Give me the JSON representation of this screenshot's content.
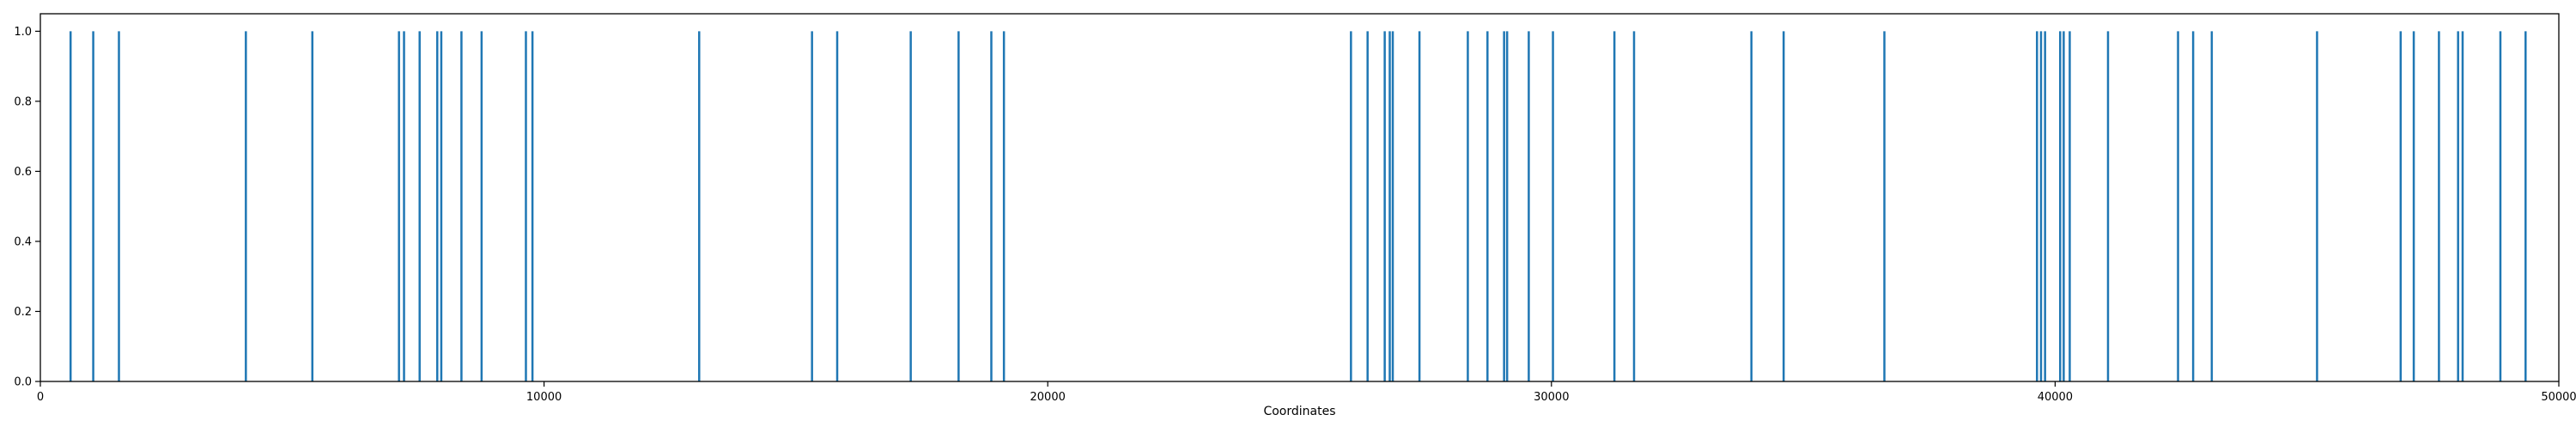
{
  "chart_data": {
    "type": "bar",
    "title": "",
    "xlabel": "Coordinates",
    "ylabel": "",
    "xlim": [
      0,
      50000
    ],
    "ylim": [
      0,
      1.05
    ],
    "grid": false,
    "color": "#1f77b4",
    "x_ticks": [
      0,
      10000,
      20000,
      30000,
      40000,
      50000
    ],
    "x_tick_labels": [
      "0",
      "10000",
      "20000",
      "30000",
      "40000",
      "50000"
    ],
    "y_ticks": [
      0.0,
      0.2,
      0.4,
      0.6,
      0.8,
      1.0
    ],
    "y_tick_labels": [
      "0.0",
      "0.2",
      "0.4",
      "0.6",
      "0.8",
      "1.0"
    ],
    "x": [
      600,
      1050,
      1560,
      4080,
      5400,
      7120,
      7220,
      7530,
      7880,
      7960,
      8360,
      8760,
      9640,
      9770,
      13080,
      15320,
      15820,
      17280,
      18230,
      18880,
      19130,
      26020,
      26350,
      26690,
      26790,
      26850,
      27380,
      28340,
      28730,
      29060,
      29120,
      29550,
      30030,
      31250,
      31640,
      33970,
      34610,
      36610,
      39640,
      39720,
      39800,
      40100,
      40170,
      40290,
      41050,
      42440,
      42740,
      43110,
      45200,
      46860,
      47120,
      47620,
      48000,
      48090,
      48840,
      49340
    ],
    "values": [
      1,
      1,
      1,
      1,
      1,
      1,
      1,
      1,
      1,
      1,
      1,
      1,
      1,
      1,
      1,
      1,
      1,
      1,
      1,
      1,
      1,
      1,
      1,
      1,
      1,
      1,
      1,
      1,
      1,
      1,
      1,
      1,
      1,
      1,
      1,
      1,
      1,
      1,
      1,
      1,
      1,
      1,
      1,
      1,
      1,
      1,
      1,
      1,
      1,
      1,
      1,
      1,
      1,
      1,
      1,
      1
    ]
  }
}
